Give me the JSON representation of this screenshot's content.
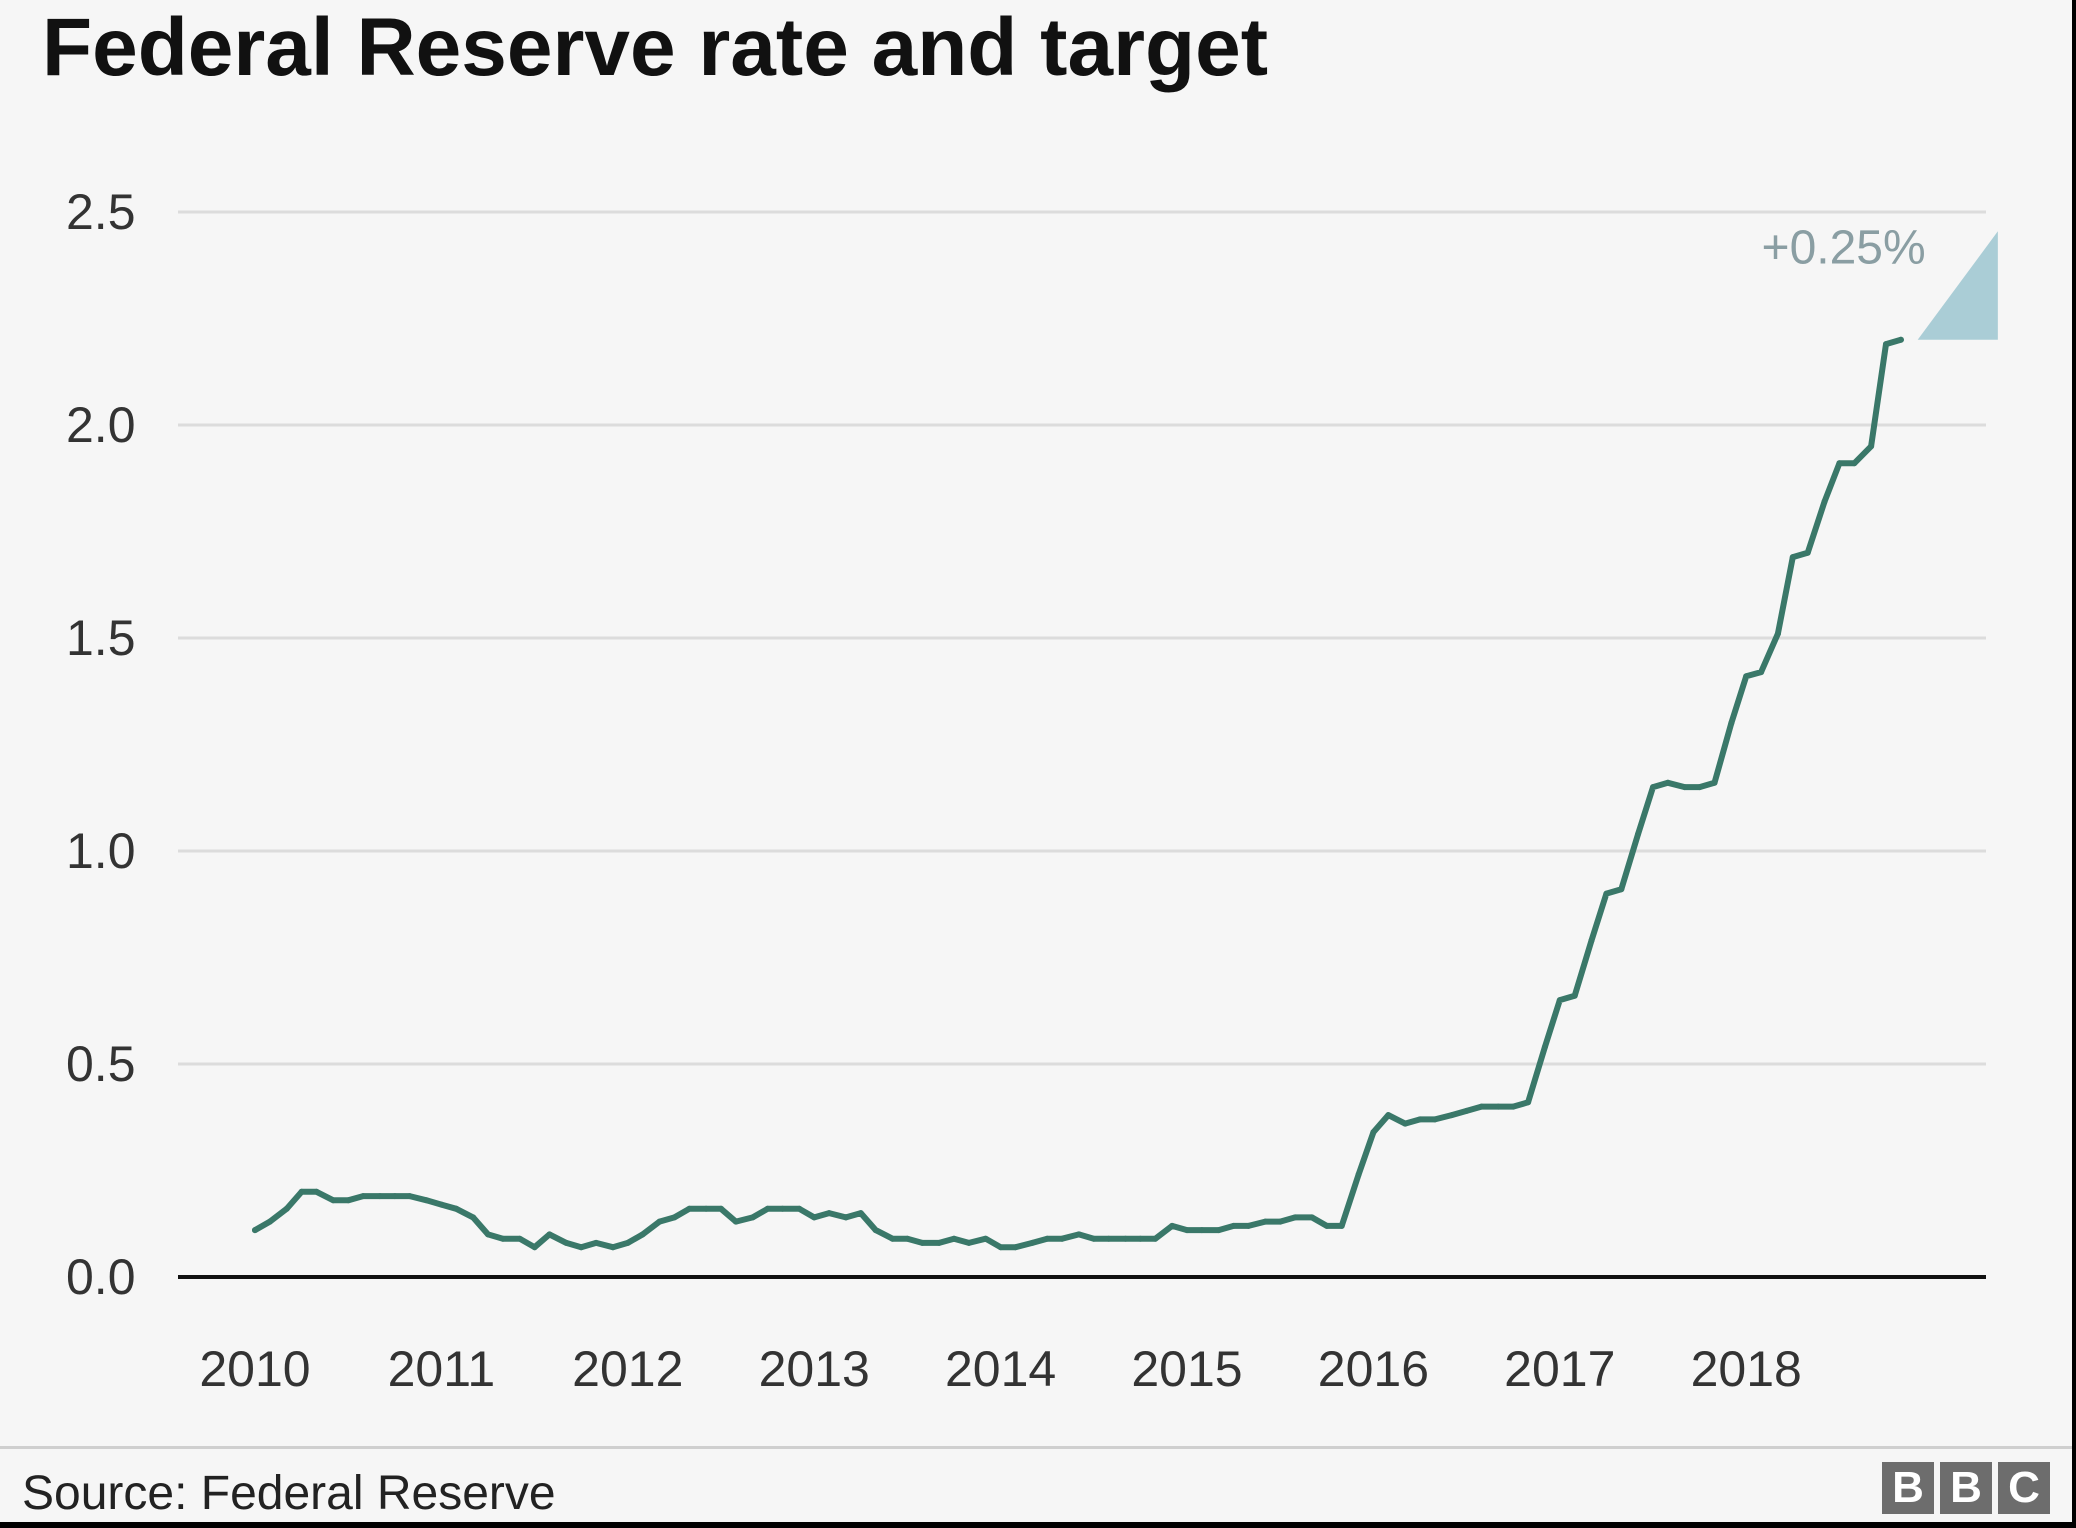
{
  "title": "Federal Reserve rate and target",
  "source": "Source: Federal Reserve",
  "logo": "BBC",
  "colors": {
    "line": "#3a7869",
    "target": "#aacdd6",
    "grid": "#dcdcdc",
    "baseline": "#111111",
    "annotation": "#8a9ea3"
  },
  "chart_data": {
    "type": "line",
    "title": "Federal Reserve rate and target",
    "xlabel": "",
    "ylabel": "",
    "x_ticks": [
      "2010",
      "2011",
      "2012",
      "2013",
      "2014",
      "2015",
      "2016",
      "2017",
      "2018"
    ],
    "y_ticks": [
      "0.0",
      "0.5",
      "1.0",
      "1.5",
      "2.0",
      "2.5"
    ],
    "xlim": [
      2009.6,
      2019.3
    ],
    "ylim": [
      0,
      2.5
    ],
    "grid": "horizontal",
    "annotation": {
      "text": "+0.25%",
      "from_rate": 2.2,
      "to_rate": 2.45,
      "x": 2018.92,
      "x_end": 2019.35
    },
    "series": [
      {
        "values": [
          [
            2010.0,
            0.11
          ],
          [
            2010.08,
            0.13
          ],
          [
            2010.17,
            0.16
          ],
          [
            2010.25,
            0.2
          ],
          [
            2010.33,
            0.2
          ],
          [
            2010.42,
            0.18
          ],
          [
            2010.5,
            0.18
          ],
          [
            2010.58,
            0.19
          ],
          [
            2010.67,
            0.19
          ],
          [
            2010.75,
            0.19
          ],
          [
            2010.83,
            0.19
          ],
          [
            2010.92,
            0.18
          ],
          [
            2011.0,
            0.17
          ],
          [
            2011.08,
            0.16
          ],
          [
            2011.17,
            0.14
          ],
          [
            2011.25,
            0.1
          ],
          [
            2011.33,
            0.09
          ],
          [
            2011.42,
            0.09
          ],
          [
            2011.5,
            0.07
          ],
          [
            2011.58,
            0.1
          ],
          [
            2011.67,
            0.08
          ],
          [
            2011.75,
            0.07
          ],
          [
            2011.83,
            0.08
          ],
          [
            2011.92,
            0.07
          ],
          [
            2012.0,
            0.08
          ],
          [
            2012.08,
            0.1
          ],
          [
            2012.17,
            0.13
          ],
          [
            2012.25,
            0.14
          ],
          [
            2012.33,
            0.16
          ],
          [
            2012.42,
            0.16
          ],
          [
            2012.5,
            0.16
          ],
          [
            2012.58,
            0.13
          ],
          [
            2012.67,
            0.14
          ],
          [
            2012.75,
            0.16
          ],
          [
            2012.83,
            0.16
          ],
          [
            2012.92,
            0.16
          ],
          [
            2013.0,
            0.14
          ],
          [
            2013.08,
            0.15
          ],
          [
            2013.17,
            0.14
          ],
          [
            2013.25,
            0.15
          ],
          [
            2013.33,
            0.11
          ],
          [
            2013.42,
            0.09
          ],
          [
            2013.5,
            0.09
          ],
          [
            2013.58,
            0.08
          ],
          [
            2013.67,
            0.08
          ],
          [
            2013.75,
            0.09
          ],
          [
            2013.83,
            0.08
          ],
          [
            2013.92,
            0.09
          ],
          [
            2014.0,
            0.07
          ],
          [
            2014.08,
            0.07
          ],
          [
            2014.17,
            0.08
          ],
          [
            2014.25,
            0.09
          ],
          [
            2014.33,
            0.09
          ],
          [
            2014.42,
            0.1
          ],
          [
            2014.5,
            0.09
          ],
          [
            2014.58,
            0.09
          ],
          [
            2014.67,
            0.09
          ],
          [
            2014.75,
            0.09
          ],
          [
            2014.83,
            0.09
          ],
          [
            2014.92,
            0.12
          ],
          [
            2015.0,
            0.11
          ],
          [
            2015.08,
            0.11
          ],
          [
            2015.17,
            0.11
          ],
          [
            2015.25,
            0.12
          ],
          [
            2015.33,
            0.12
          ],
          [
            2015.42,
            0.13
          ],
          [
            2015.5,
            0.13
          ],
          [
            2015.58,
            0.14
          ],
          [
            2015.67,
            0.14
          ],
          [
            2015.75,
            0.12
          ],
          [
            2015.83,
            0.12
          ],
          [
            2015.92,
            0.24
          ],
          [
            2016.0,
            0.34
          ],
          [
            2016.08,
            0.38
          ],
          [
            2016.17,
            0.36
          ],
          [
            2016.25,
            0.37
          ],
          [
            2016.33,
            0.37
          ],
          [
            2016.42,
            0.38
          ],
          [
            2016.5,
            0.39
          ],
          [
            2016.58,
            0.4
          ],
          [
            2016.67,
            0.4
          ],
          [
            2016.75,
            0.4
          ],
          [
            2016.83,
            0.41
          ],
          [
            2016.92,
            0.54
          ],
          [
            2017.0,
            0.65
          ],
          [
            2017.08,
            0.66
          ],
          [
            2017.17,
            0.79
          ],
          [
            2017.25,
            0.9
          ],
          [
            2017.33,
            0.91
          ],
          [
            2017.42,
            1.04
          ],
          [
            2017.5,
            1.15
          ],
          [
            2017.58,
            1.16
          ],
          [
            2017.67,
            1.15
          ],
          [
            2017.75,
            1.15
          ],
          [
            2017.83,
            1.16
          ],
          [
            2017.92,
            1.3
          ],
          [
            2018.0,
            1.41
          ],
          [
            2018.08,
            1.42
          ],
          [
            2018.17,
            1.51
          ],
          [
            2018.25,
            1.69
          ],
          [
            2018.33,
            1.7
          ],
          [
            2018.42,
            1.82
          ],
          [
            2018.5,
            1.91
          ],
          [
            2018.58,
            1.91
          ],
          [
            2018.67,
            1.95
          ],
          [
            2018.75,
            2.19
          ],
          [
            2018.83,
            2.2
          ]
        ]
      }
    ]
  }
}
